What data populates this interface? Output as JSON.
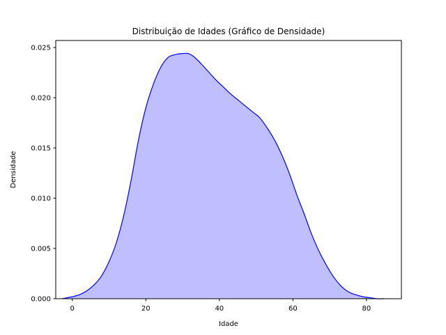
{
  "chart_data": {
    "type": "area",
    "title": "Distribuição de Idades (Gráfico de Densidade)",
    "xlabel": "Idade",
    "ylabel": "Densidade",
    "xlim": [
      -4.5,
      89.5
    ],
    "ylim": [
      0,
      0.0257
    ],
    "xticks": [
      0,
      20,
      40,
      60,
      80
    ],
    "xtick_labels": [
      "0",
      "20",
      "40",
      "60",
      "80"
    ],
    "yticks": [
      0.0,
      0.005,
      0.01,
      0.015,
      0.02,
      0.025
    ],
    "ytick_labels": [
      "0.000",
      "0.005",
      "0.010",
      "0.015",
      "0.020",
      "0.025"
    ],
    "grid": false,
    "series": [
      {
        "line_color": "#0000ff",
        "fill_color": "#0000ff",
        "fill_opacity": 0.25,
        "x": [
          -2.8,
          0,
          2,
          4,
          6,
          8,
          10,
          12,
          14,
          16,
          18,
          20,
          22,
          24,
          26,
          28,
          30,
          31.5,
          33,
          35,
          37,
          39,
          41,
          43,
          45,
          47,
          49,
          51,
          53,
          55,
          57,
          59,
          61,
          63,
          65,
          67,
          69,
          71,
          73,
          75,
          77,
          79,
          81,
          83,
          84.8
        ],
        "y": [
          0.0,
          0.0002,
          0.0004,
          0.0008,
          0.0014,
          0.0023,
          0.0037,
          0.0056,
          0.0083,
          0.0118,
          0.0158,
          0.019,
          0.0213,
          0.023,
          0.024,
          0.0243,
          0.0244,
          0.0244,
          0.0241,
          0.0234,
          0.0226,
          0.0218,
          0.0211,
          0.0204,
          0.0198,
          0.0192,
          0.0186,
          0.018,
          0.017,
          0.0158,
          0.0143,
          0.0125,
          0.0104,
          0.0085,
          0.0065,
          0.0048,
          0.0034,
          0.0022,
          0.0013,
          0.0007,
          0.0004,
          0.0002,
          0.0001,
          0.0,
          0.0
        ]
      }
    ]
  }
}
